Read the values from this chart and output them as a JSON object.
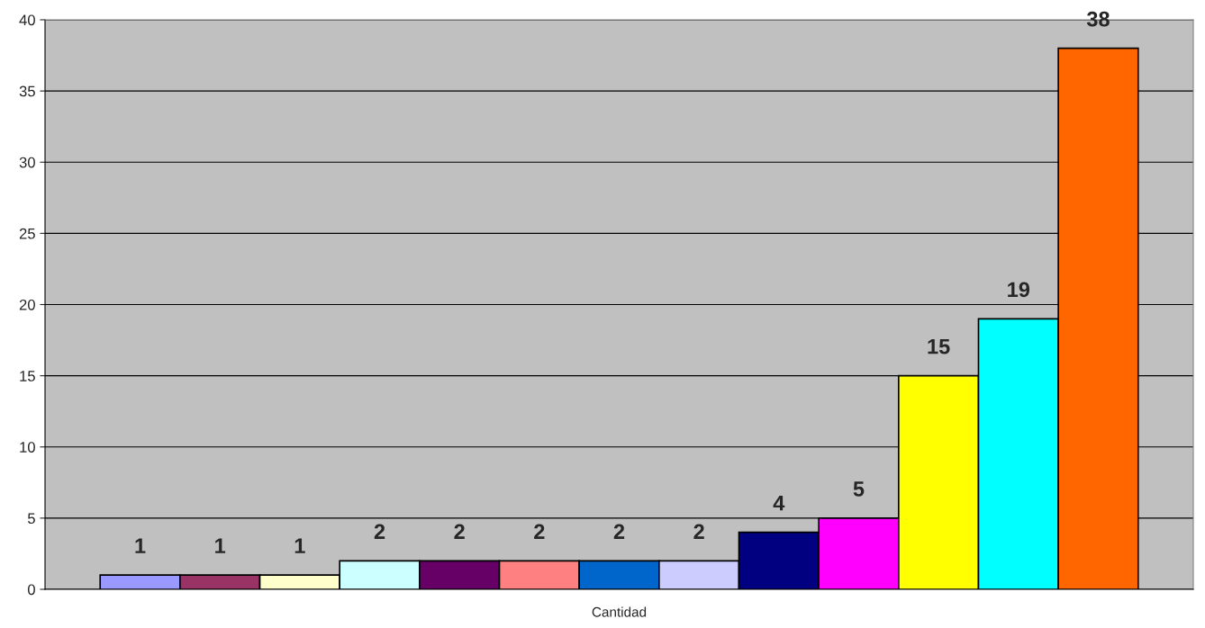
{
  "chart_data": {
    "type": "bar",
    "categories": [
      "Cantidad"
    ],
    "series": [
      {
        "color": "#9999ff",
        "values": [
          1
        ]
      },
      {
        "color": "#993366",
        "values": [
          1
        ]
      },
      {
        "color": "#ffffcc",
        "values": [
          1
        ]
      },
      {
        "color": "#ccffff",
        "values": [
          2
        ]
      },
      {
        "color": "#660066",
        "values": [
          2
        ]
      },
      {
        "color": "#ff8080",
        "values": [
          2
        ]
      },
      {
        "color": "#0066cc",
        "values": [
          2
        ]
      },
      {
        "color": "#ccccff",
        "values": [
          2
        ]
      },
      {
        "color": "#000080",
        "values": [
          4
        ]
      },
      {
        "color": "#ff00ff",
        "values": [
          5
        ]
      },
      {
        "color": "#ffff00",
        "values": [
          15
        ]
      },
      {
        "color": "#00ffff",
        "values": [
          19
        ]
      },
      {
        "color": "#ff6600",
        "values": [
          38
        ]
      }
    ],
    "ylim": [
      0,
      40
    ],
    "yticks": [
      0,
      5,
      10,
      15,
      20,
      25,
      30,
      35,
      40
    ],
    "grid": "y",
    "data_labels": true
  }
}
